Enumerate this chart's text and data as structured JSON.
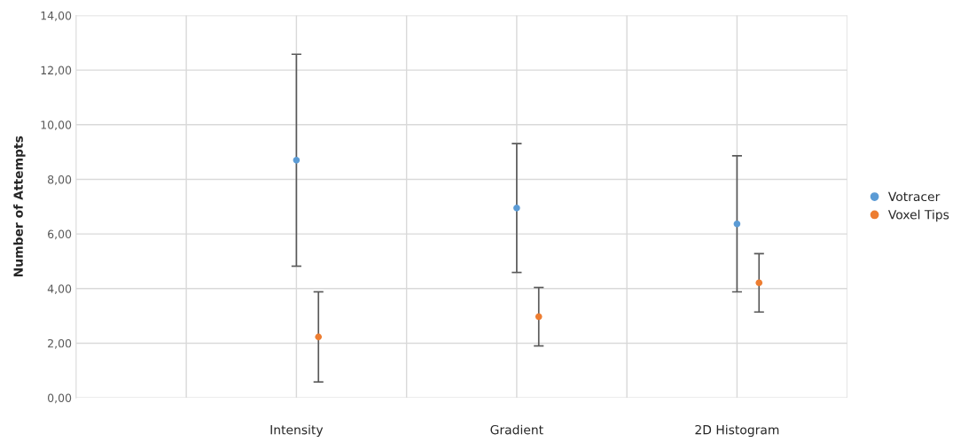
{
  "chart_data": {
    "type": "scatter",
    "ylabel": "Number of Attempts",
    "categories": [
      "Intensity",
      "Gradient",
      "2D Histogram"
    ],
    "series": [
      {
        "name": "Votracer",
        "color": "#5b9bd5",
        "values": [
          8.7,
          6.95,
          6.37
        ],
        "errors": [
          3.88,
          2.36,
          2.49
        ]
      },
      {
        "name": "Voxel Tips",
        "color": "#ed7d31",
        "values": [
          2.23,
          2.97,
          4.21
        ],
        "errors": [
          1.65,
          1.07,
          1.07
        ]
      }
    ],
    "ylim": [
      0,
      14
    ],
    "yticks": [
      {
        "value": 0,
        "label": "0,00"
      },
      {
        "value": 2,
        "label": "2,00"
      },
      {
        "value": 4,
        "label": "4,00"
      },
      {
        "value": 6,
        "label": "6,00"
      },
      {
        "value": 8,
        "label": "8,00"
      },
      {
        "value": 10,
        "label": "10,00"
      },
      {
        "value": 12,
        "label": "12,00"
      },
      {
        "value": 14,
        "label": "14,00"
      }
    ],
    "grid": true,
    "legend": "right",
    "marker": "circle"
  }
}
